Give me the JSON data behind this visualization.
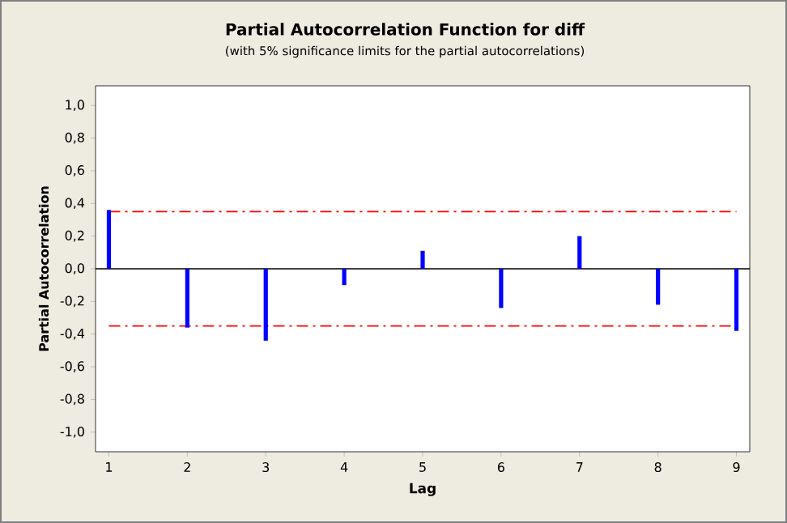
{
  "chart_data": {
    "type": "bar",
    "title": "Partial Autocorrelation Function for diff",
    "subtitle": "(with 5% significance limits for the partial autocorrelations)",
    "xlabel": "Lag",
    "ylabel": "Partial Autocorrelation",
    "x": [
      1,
      2,
      3,
      4,
      5,
      6,
      7,
      8,
      9
    ],
    "values": [
      0.36,
      -0.36,
      -0.44,
      -0.1,
      0.11,
      -0.24,
      0.2,
      -0.22,
      -0.38
    ],
    "color": "#0000ff",
    "xlim": [
      0.83,
      9.17
    ],
    "xticks": [
      1,
      2,
      3,
      4,
      5,
      6,
      7,
      8,
      9
    ],
    "ylim": [
      -1.12,
      1.12
    ],
    "yticks": [
      {
        "value": -1.0,
        "label": "-1,0"
      },
      {
        "value": -0.8,
        "label": "-0,8"
      },
      {
        "value": -0.6,
        "label": "-0,6"
      },
      {
        "value": -0.4,
        "label": "-0,4"
      },
      {
        "value": -0.2,
        "label": "-0,2"
      },
      {
        "value": 0.0,
        "label": "0,0"
      },
      {
        "value": 0.2,
        "label": "0,2"
      },
      {
        "value": 0.4,
        "label": "0,4"
      },
      {
        "value": 0.6,
        "label": "0,6"
      },
      {
        "value": 0.8,
        "label": "0,8"
      },
      {
        "value": 1.0,
        "label": "1,0"
      }
    ],
    "ref_lines": [
      {
        "axis": "y",
        "value": 0.35,
        "color": "#ff0000",
        "line_style": "dashdot"
      },
      {
        "axis": "y",
        "value": -0.35,
        "color": "#ff0000",
        "line_style": "dashdot"
      },
      {
        "axis": "y",
        "value": 0,
        "color": "#000000",
        "line_style": "solid"
      }
    ],
    "grid": false
  }
}
